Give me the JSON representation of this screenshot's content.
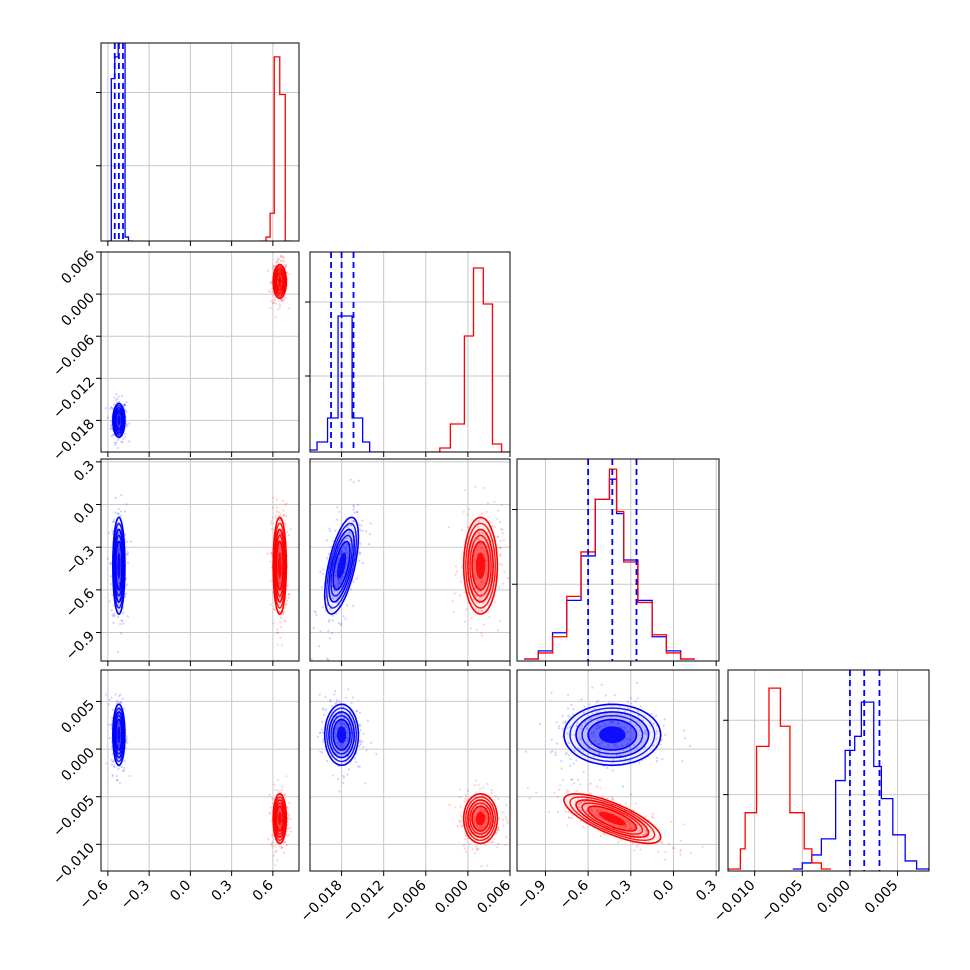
{
  "colors": {
    "series_a": "#0000ff",
    "series_b": "#ff0000",
    "grid": "#c8c8c8",
    "frame": "#000000"
  },
  "chart_data": {
    "type": "corner",
    "parameters": [
      {
        "range": [
          -0.65,
          0.79
        ],
        "ticks": [
          "−0.6",
          "−0.3",
          "0.0",
          "0.3",
          "0.6"
        ],
        "tick_values": [
          -0.6,
          -0.3,
          0.0,
          0.3,
          0.6
        ]
      },
      {
        "range": [
          -0.0225,
          0.006
        ],
        "ticks": [
          "−0.018",
          "−0.012",
          "−0.006",
          "0.000",
          "0.006"
        ],
        "tick_values": [
          -0.018,
          -0.012,
          -0.006,
          0.0,
          0.006
        ]
      },
      {
        "range": [
          -1.1,
          0.32
        ],
        "ticks": [
          "−0.9",
          "−0.6",
          "−0.3",
          "0.0",
          "0.3"
        ],
        "tick_values": [
          -0.9,
          -0.6,
          -0.3,
          0.0,
          0.3
        ]
      },
      {
        "range": [
          -0.0128,
          0.0083
        ],
        "ticks": [
          "−0.010",
          "−0.005",
          "0.000",
          "0.005"
        ],
        "tick_values": [
          -0.01,
          -0.005,
          0.0,
          0.005
        ]
      }
    ],
    "series": [
      {
        "color": "#0000ff",
        "means": [
          -0.52,
          -0.018,
          -0.43,
          0.0015
        ],
        "sigmas": [
          0.022,
          0.0012,
          0.17,
          0.0016
        ],
        "corr": {
          "1,0": 0.0,
          "2,0": 0.0,
          "3,0": 0.0,
          "2,1": 0.6,
          "3,1": 0.0,
          "3,2": 0.0
        },
        "quantiles": [
          [
            -0.55,
            -0.52,
            -0.49
          ],
          [
            -0.0195,
            -0.018,
            -0.0163
          ],
          [
            -0.6,
            -0.43,
            -0.26
          ],
          [
            0.0,
            0.0015,
            0.0031
          ]
        ]
      },
      {
        "color": "#ff0000",
        "means": [
          0.65,
          0.0018,
          -0.43,
          -0.0073
        ],
        "sigmas": [
          0.024,
          0.0012,
          0.17,
          0.0013
        ],
        "corr": {
          "1,0": 0.0,
          "2,0": 0.0,
          "3,0": 0.0,
          "2,1": 0.0,
          "3,1": 0.0,
          "3,2": -0.75
        },
        "quantiles": [
          [
            0.62,
            0.65,
            0.68
          ],
          [
            0.0006,
            0.0018,
            0.003
          ],
          [
            -0.6,
            -0.43,
            -0.26
          ],
          [
            -0.0086,
            -0.0073,
            -0.006
          ]
        ]
      }
    ],
    "histograms": [
      {
        "a_bins": [
          [
            -0.6,
            -0.575,
            0.0
          ],
          [
            -0.575,
            -0.55,
            0.82
          ],
          [
            -0.55,
            -0.525,
            0.93
          ],
          [
            -0.525,
            -0.5,
            1.0
          ],
          [
            -0.5,
            -0.475,
            1.0
          ],
          [
            -0.475,
            -0.45,
            0.02
          ],
          [
            -0.45,
            -0.42,
            0.0
          ]
        ],
        "b_bins": [
          [
            0.5,
            0.55,
            0.0
          ],
          [
            0.55,
            0.58,
            0.02
          ],
          [
            0.58,
            0.61,
            0.14
          ],
          [
            0.61,
            0.65,
            0.93
          ],
          [
            0.65,
            0.69,
            0.74
          ],
          [
            0.69,
            0.73,
            0.0
          ]
        ]
      },
      {
        "a_bins": [
          [
            -0.023,
            -0.0215,
            0.01
          ],
          [
            -0.0215,
            -0.02,
            0.05
          ],
          [
            -0.02,
            -0.0185,
            0.17
          ],
          [
            -0.0185,
            -0.0175,
            0.68
          ],
          [
            -0.0175,
            -0.0165,
            0.68
          ],
          [
            -0.0165,
            -0.015,
            0.17
          ],
          [
            -0.015,
            -0.014,
            0.05
          ],
          [
            -0.014,
            -0.012,
            0.0
          ]
        ],
        "b_bins": [
          [
            -0.006,
            -0.004,
            0.0
          ],
          [
            -0.004,
            -0.0025,
            0.02
          ],
          [
            -0.0025,
            -0.0015,
            0.14
          ],
          [
            -0.0015,
            -0.0005,
            0.14
          ],
          [
            -0.0005,
            0.0008,
            0.58
          ],
          [
            0.0008,
            0.0022,
            0.92
          ],
          [
            0.0022,
            0.0035,
            0.74
          ],
          [
            0.0035,
            0.0048,
            0.04
          ],
          [
            0.0048,
            0.006,
            0.0
          ]
        ]
      },
      {
        "a_bins": [
          [
            -1.05,
            -0.95,
            0.01
          ],
          [
            -0.95,
            -0.85,
            0.05
          ],
          [
            -0.85,
            -0.75,
            0.14
          ],
          [
            -0.75,
            -0.65,
            0.3
          ],
          [
            -0.65,
            -0.55,
            0.52
          ],
          [
            -0.55,
            -0.45,
            0.8
          ],
          [
            -0.45,
            -0.4,
            0.9
          ],
          [
            -0.4,
            -0.35,
            0.73
          ],
          [
            -0.35,
            -0.25,
            0.5
          ],
          [
            -0.25,
            -0.15,
            0.3
          ],
          [
            -0.15,
            -0.05,
            0.12
          ],
          [
            -0.05,
            0.05,
            0.05
          ],
          [
            0.05,
            0.15,
            0.01
          ]
        ],
        "b_bins": [
          [
            -1.05,
            -0.95,
            0.01
          ],
          [
            -0.95,
            -0.85,
            0.04
          ],
          [
            -0.85,
            -0.75,
            0.12
          ],
          [
            -0.75,
            -0.65,
            0.32
          ],
          [
            -0.65,
            -0.55,
            0.54
          ],
          [
            -0.55,
            -0.45,
            0.8
          ],
          [
            -0.45,
            -0.4,
            0.95
          ],
          [
            -0.4,
            -0.35,
            0.74
          ],
          [
            -0.35,
            -0.25,
            0.49
          ],
          [
            -0.25,
            -0.15,
            0.29
          ],
          [
            -0.15,
            -0.05,
            0.13
          ],
          [
            -0.05,
            0.05,
            0.04
          ],
          [
            0.05,
            0.15,
            0.01
          ]
        ]
      },
      {
        "a_bins": [
          [
            -0.006,
            -0.005,
            0.01
          ],
          [
            -0.005,
            -0.004,
            0.04
          ],
          [
            -0.004,
            -0.003,
            0.08
          ],
          [
            -0.003,
            -0.0015,
            0.16
          ],
          [
            -0.0015,
            -0.0005,
            0.45
          ],
          [
            -0.0005,
            0.0005,
            0.6
          ],
          [
            0.0005,
            0.0012,
            0.67
          ],
          [
            0.0012,
            0.0025,
            0.84
          ],
          [
            0.0025,
            0.0033,
            0.52
          ],
          [
            0.0033,
            0.0045,
            0.36
          ],
          [
            0.0045,
            0.0058,
            0.18
          ],
          [
            0.0058,
            0.007,
            0.05
          ],
          [
            0.007,
            0.0083,
            0.01
          ]
        ],
        "b_bins": [
          [
            -0.0128,
            -0.0115,
            0.01
          ],
          [
            -0.0115,
            -0.011,
            0.11
          ],
          [
            -0.011,
            -0.0098,
            0.29
          ],
          [
            -0.0098,
            -0.0085,
            0.62
          ],
          [
            -0.0085,
            -0.0073,
            0.91
          ],
          [
            -0.0073,
            -0.0063,
            0.72
          ],
          [
            -0.0063,
            -0.0048,
            0.29
          ],
          [
            -0.0048,
            -0.004,
            0.11
          ],
          [
            -0.004,
            -0.003,
            0.04
          ],
          [
            -0.003,
            -0.002,
            0.01
          ]
        ]
      }
    ]
  }
}
